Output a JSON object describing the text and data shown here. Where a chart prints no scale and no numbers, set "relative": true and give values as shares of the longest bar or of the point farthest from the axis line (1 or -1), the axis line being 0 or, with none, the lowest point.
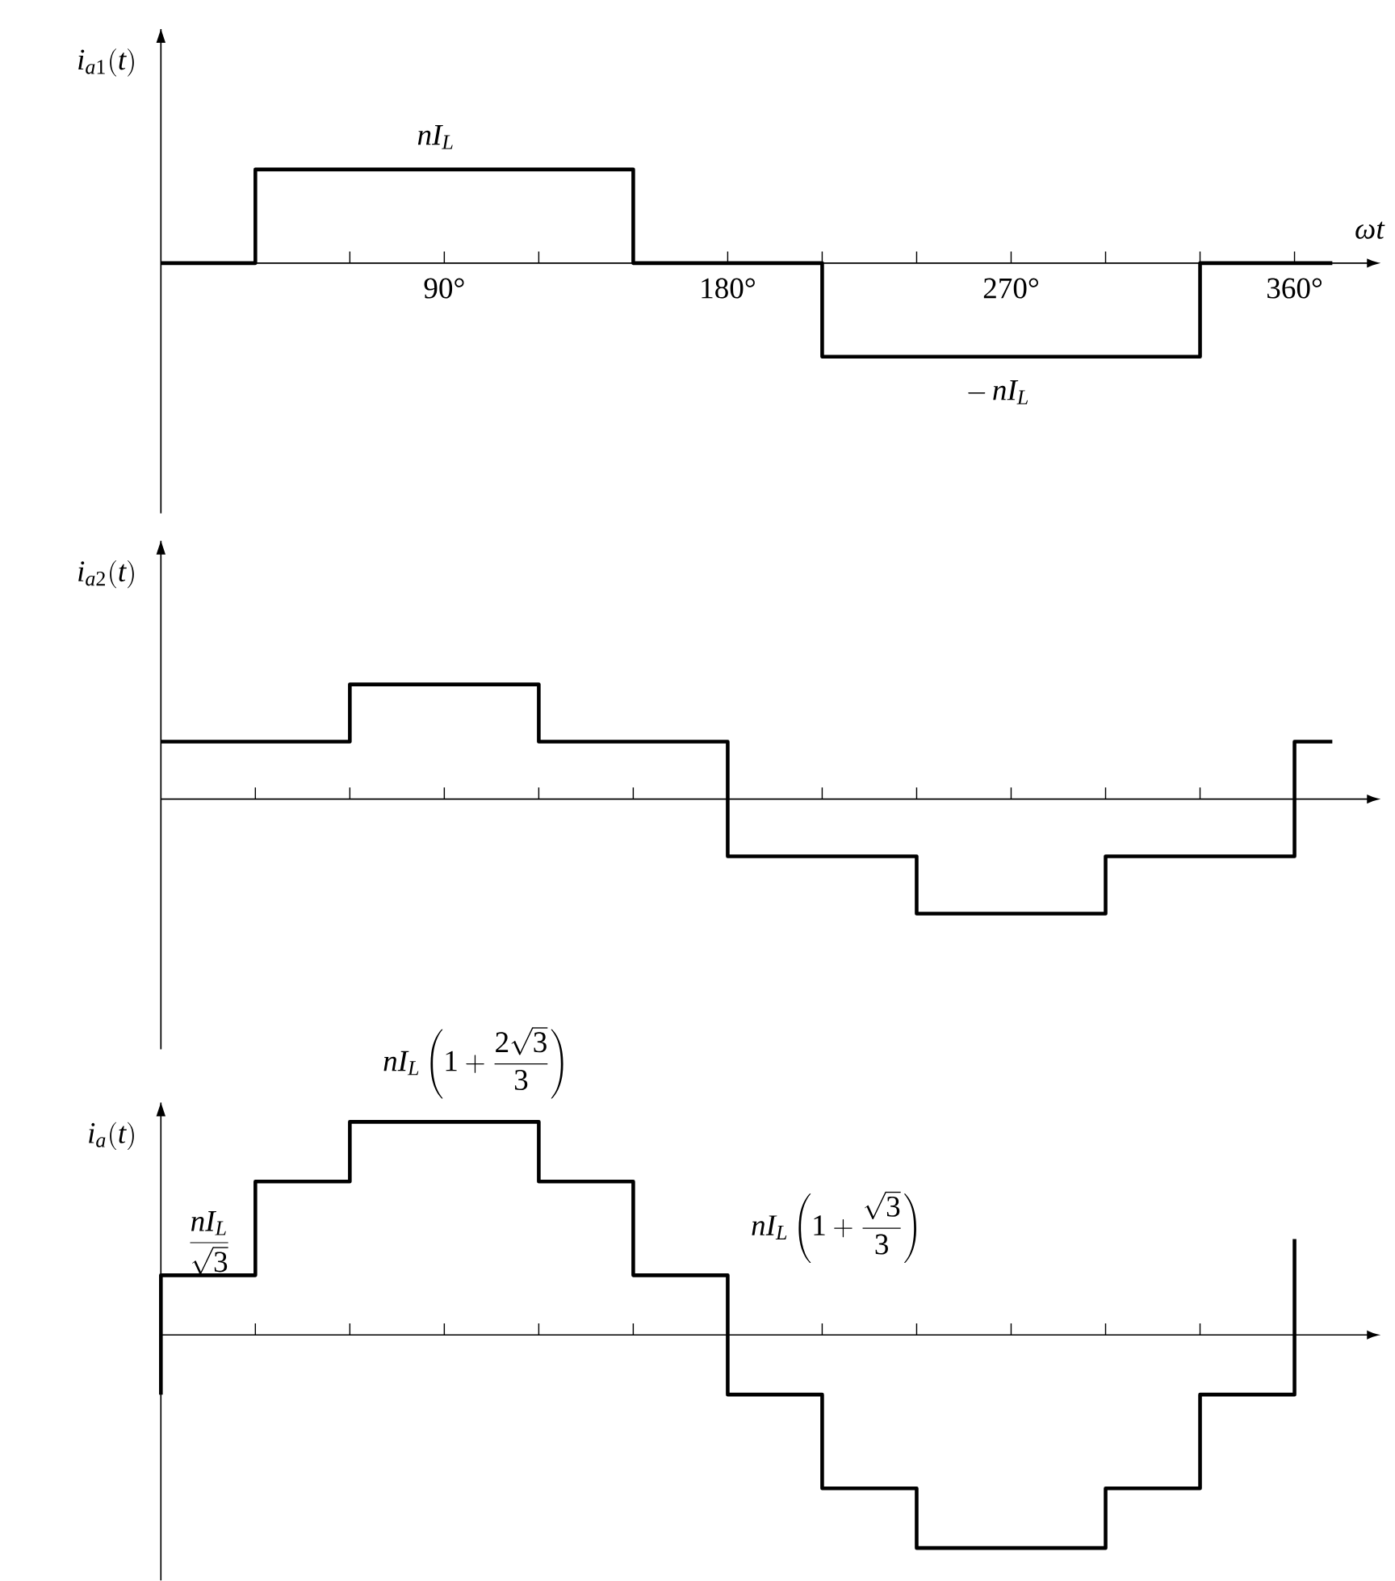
{
  "chart_data": [
    {
      "type": "line",
      "ylabel": "i_{a1}(t)",
      "xlabel": "\\omega t",
      "relative": true,
      "color": "#000000",
      "x": [
        0,
        30,
        30,
        150,
        150,
        210,
        210,
        330,
        330,
        372
      ],
      "values": [
        0,
        0,
        1,
        1,
        0,
        0,
        -1,
        -1,
        0,
        0
      ],
      "xlim": [
        0,
        383
      ],
      "xticks": [
        {
          "value": 30,
          "label": null
        },
        {
          "value": 60,
          "label": null
        },
        {
          "value": 90,
          "label": "90°"
        },
        {
          "value": 120,
          "label": null
        },
        {
          "value": 150,
          "label": null
        },
        {
          "value": 180,
          "label": "180°"
        },
        {
          "value": 210,
          "label": null
        },
        {
          "value": 240,
          "label": null
        },
        {
          "value": 270,
          "label": "270°"
        },
        {
          "value": 300,
          "label": null
        },
        {
          "value": 330,
          "label": null
        },
        {
          "value": 360,
          "label": "360°"
        }
      ],
      "tick_labels": "x",
      "annotations": [
        "nI_L",
        "-\\,nI_L"
      ]
    },
    {
      "type": "line",
      "ylabel": "i_{a2}(t)",
      "relative": true,
      "color": "#000000",
      "x": [
        0,
        60,
        60,
        120,
        120,
        180,
        180,
        240,
        240,
        300,
        300,
        360,
        360,
        372
      ],
      "values": [
        0.5,
        0.5,
        1,
        1,
        0.5,
        0.5,
        -0.5,
        -0.5,
        -1,
        -1,
        -0.5,
        -0.5,
        0.5,
        0.5
      ],
      "xlim": [
        0,
        383
      ],
      "xticks": [
        {
          "value": 30,
          "label": null
        },
        {
          "value": 60,
          "label": null
        },
        {
          "value": 90,
          "label": null
        },
        {
          "value": 120,
          "label": null
        },
        {
          "value": 150,
          "label": null
        },
        {
          "value": 180,
          "label": null
        },
        {
          "value": 210,
          "label": null
        },
        {
          "value": 240,
          "label": null
        },
        {
          "value": 270,
          "label": null
        },
        {
          "value": 300,
          "label": null
        },
        {
          "value": 330,
          "label": null
        },
        {
          "value": 360,
          "label": null
        }
      ],
      "tick_labels": false
    },
    {
      "type": "line",
      "ylabel": "i_{a}(t)",
      "relative": true,
      "color": "#000000",
      "x": [
        0,
        0,
        30,
        30,
        60,
        60,
        120,
        120,
        150,
        150,
        180,
        180,
        210,
        210,
        240,
        240,
        300,
        300,
        330,
        330,
        360,
        360
      ],
      "values": [
        -0.28,
        0.28,
        0.28,
        0.72,
        0.72,
        1,
        1,
        0.72,
        0.72,
        0.28,
        0.28,
        -0.28,
        -0.28,
        -0.72,
        -0.72,
        -1,
        -1,
        -0.72,
        -0.72,
        -0.28,
        -0.28,
        0.45
      ],
      "xlim": [
        0,
        383
      ],
      "xticks": [
        {
          "value": 30,
          "label": null
        },
        {
          "value": 60,
          "label": null
        },
        {
          "value": 90,
          "label": null
        },
        {
          "value": 120,
          "label": null
        },
        {
          "value": 150,
          "label": null
        },
        {
          "value": 180,
          "label": null
        },
        {
          "value": 210,
          "label": null
        },
        {
          "value": 240,
          "label": null
        },
        {
          "value": 270,
          "label": null
        },
        {
          "value": 300,
          "label": null
        },
        {
          "value": 330,
          "label": null
        },
        {
          "value": 360,
          "label": null
        }
      ],
      "tick_labels": false,
      "annotations": [
        "\\frac{nI_L}{\\sqrt{3}}",
        "nI_L\\left(1+\\frac{2\\sqrt{3}}{3}\\right)",
        "nI_L\\left(1+\\frac{\\sqrt{3}}{3}\\right)"
      ]
    }
  ]
}
